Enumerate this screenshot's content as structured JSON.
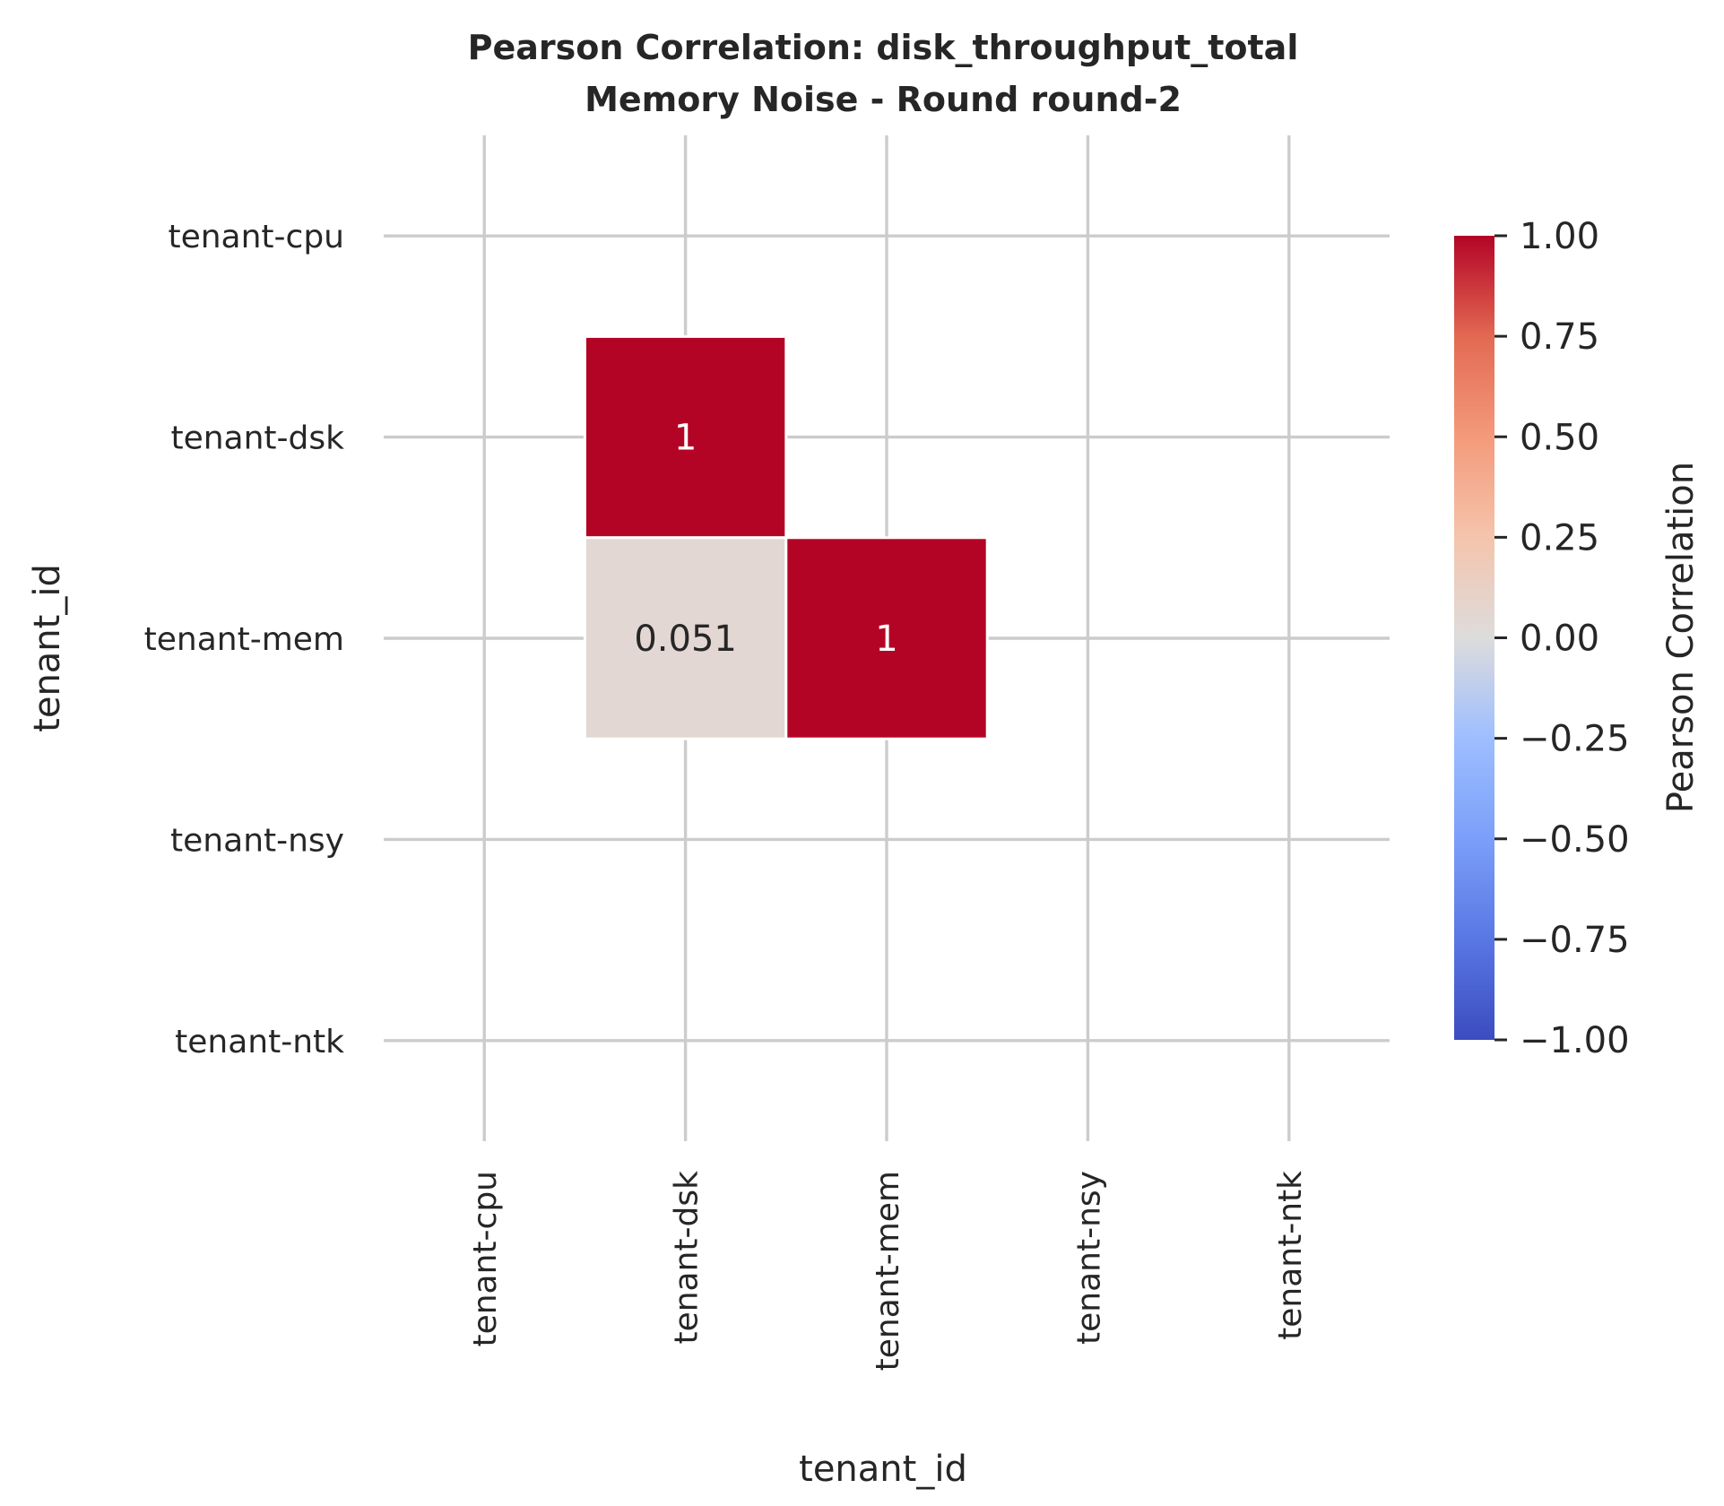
{
  "chart_data": {
    "type": "heatmap",
    "title": "Pearson Correlation: disk_throughput_total",
    "subtitle": "Memory Noise - Round round-2",
    "xlabel": "tenant_id",
    "ylabel": "tenant_id",
    "x_categories": [
      "tenant-cpu",
      "tenant-dsk",
      "tenant-mem",
      "tenant-nsy",
      "tenant-ntk"
    ],
    "y_categories": [
      "tenant-cpu",
      "tenant-dsk",
      "tenant-mem",
      "tenant-nsy",
      "tenant-ntk"
    ],
    "matrix": [
      [
        null,
        null,
        null,
        null,
        null
      ],
      [
        null,
        1,
        null,
        null,
        null
      ],
      [
        null,
        0.051,
        1,
        null,
        null
      ],
      [
        null,
        null,
        null,
        null,
        null
      ],
      [
        null,
        null,
        null,
        null,
        null
      ]
    ],
    "cell_labels": [
      [
        null,
        null,
        null,
        null,
        null
      ],
      [
        null,
        "1",
        null,
        null,
        null
      ],
      [
        null,
        "0.051",
        "1",
        null,
        null
      ],
      [
        null,
        null,
        null,
        null,
        null
      ],
      [
        null,
        null,
        null,
        null,
        null
      ]
    ],
    "colorbar": {
      "label": "Pearson Correlation",
      "vmin": -1,
      "vmax": 1,
      "colormap": "coolwarm",
      "ticks": [
        1.0,
        0.75,
        0.5,
        0.25,
        0.0,
        -0.25,
        -0.5,
        -0.75,
        -1.0
      ],
      "tick_labels": [
        "1.00",
        "0.75",
        "0.50",
        "0.25",
        "0.00",
        "−0.25",
        "−0.50",
        "−0.75",
        "−1.00"
      ]
    },
    "grid": true,
    "colors": {
      "high": "#b40426",
      "mid": "#dddcdc",
      "low": "#3b4cc0"
    }
  }
}
